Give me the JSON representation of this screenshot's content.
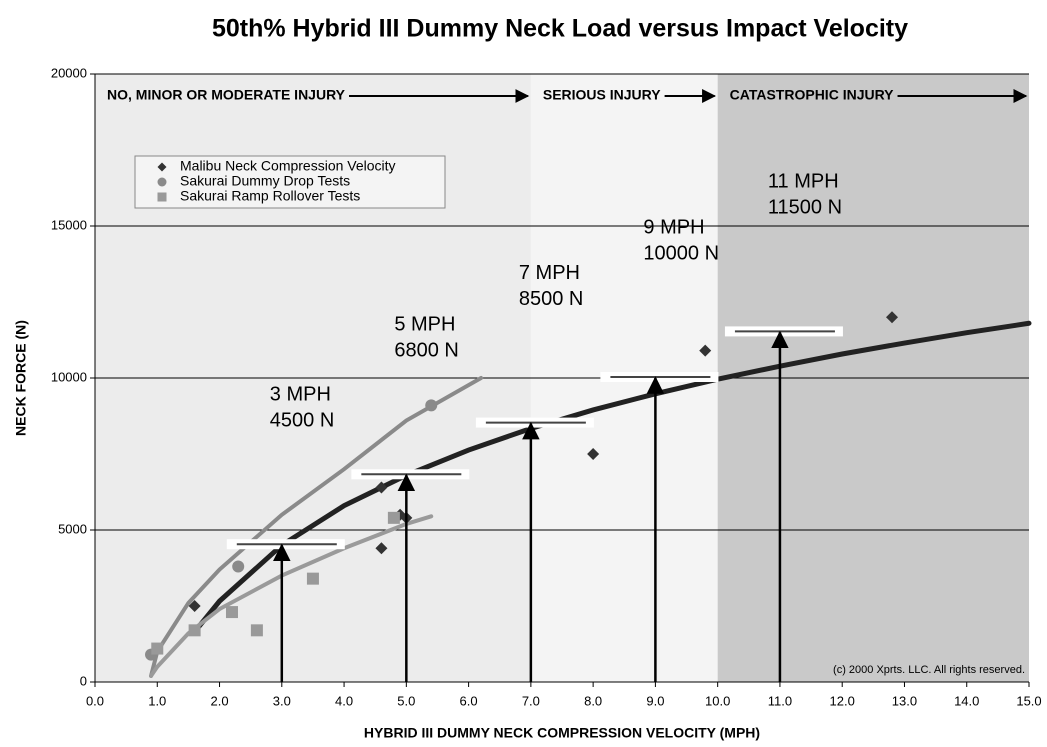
{
  "chart_data": {
    "type": "scatter",
    "title": "50th% Hybrid III Dummy Neck Load versus Impact Velocity",
    "x_label": "HYBRID III DUMMY NECK COMPRESSION VELOCITY (MPH)",
    "y_label": "NECK FORCE (N)",
    "xlim": [
      0,
      15
    ],
    "ylim": [
      0,
      20000
    ],
    "xticks": [
      {
        "value": 0,
        "label": "0.0"
      },
      {
        "value": 1,
        "label": "1.0"
      },
      {
        "value": 2,
        "label": "2.0"
      },
      {
        "value": 3,
        "label": "3.0"
      },
      {
        "value": 4,
        "label": "4.0"
      },
      {
        "value": 5,
        "label": "5.0"
      },
      {
        "value": 6,
        "label": "6.0"
      },
      {
        "value": 7,
        "label": "7.0"
      },
      {
        "value": 8,
        "label": "8.0"
      },
      {
        "value": 9,
        "label": "9.0"
      },
      {
        "value": 10,
        "label": "10.0"
      },
      {
        "value": 11,
        "label": "11.0"
      },
      {
        "value": 12,
        "label": "12.0"
      },
      {
        "value": 13,
        "label": "13.0"
      },
      {
        "value": 14,
        "label": "14.0"
      },
      {
        "value": 15,
        "label": "15.0"
      }
    ],
    "yticks": [
      0,
      5000,
      10000,
      15000,
      20000
    ],
    "grid": true,
    "regions": [
      {
        "xlim": [
          0,
          7
        ],
        "color": "#ececec",
        "label": "NO, MINOR OR MODERATE INJURY"
      },
      {
        "xlim": [
          7,
          10
        ],
        "color": "#f4f4f4",
        "label": "SERIOUS INJURY"
      },
      {
        "xlim": [
          10,
          15
        ],
        "color": "#c9c9c9",
        "label": "CATASTROPHIC INJURY"
      }
    ],
    "series": [
      {
        "name": "Malibu Neck Compression Velocity",
        "color": "#333333",
        "marker": "diamond",
        "x": [
          1.6,
          4.6,
          4.6,
          4.9,
          5.0,
          8.0,
          9.8,
          12.8
        ],
        "values": [
          2500,
          6400,
          4400,
          5500,
          5400,
          7500,
          10900,
          12000
        ]
      },
      {
        "name": "Sakurai Dummy Drop Tests",
        "color": "#8a8a8a",
        "marker": "circle",
        "x": [
          0.9,
          2.3,
          5.4
        ],
        "values": [
          900,
          3800,
          9100
        ]
      },
      {
        "name": "Sakurai Ramp Rollover Tests",
        "color": "#999999",
        "marker": "square",
        "x": [
          1.0,
          1.6,
          2.2,
          2.6,
          3.5,
          4.8
        ],
        "values": [
          1100,
          1700,
          2300,
          1700,
          3400,
          5400
        ]
      }
    ],
    "fits": [
      {
        "color": "#222222",
        "width": 5,
        "x": [
          1.6,
          2,
          3,
          4,
          5,
          6,
          7,
          8,
          9,
          10,
          11,
          12,
          13,
          14,
          15
        ],
        "values": [
          1650,
          2660,
          4500,
          5800,
          6800,
          7630,
          8340,
          8950,
          9480,
          9960,
          10390,
          10790,
          11150,
          11490,
          11800
        ]
      },
      {
        "color": "#8a8a8a",
        "width": 4,
        "x": [
          0.9,
          1.0,
          1.5,
          2,
          3,
          4,
          5,
          6.2
        ],
        "values": [
          200,
          1000,
          2600,
          3700,
          5500,
          7000,
          8600,
          10000
        ]
      },
      {
        "color": "#9a9a9a",
        "width": 4,
        "x": [
          0.9,
          1.0,
          1.5,
          2,
          3,
          4,
          5,
          5.4
        ],
        "values": [
          200,
          500,
          1600,
          2400,
          3500,
          4400,
          5200,
          5450
        ]
      }
    ],
    "impacts": {
      "x": [
        3,
        5,
        7,
        9,
        11
      ],
      "values": [
        4500,
        6800,
        8500,
        10000,
        11500
      ],
      "speed_labels": [
        "3 MPH",
        "5 MPH",
        "7 MPH",
        "9 MPH",
        "11 MPH"
      ],
      "value_labels": [
        "4500 N",
        "6800 N",
        "8500 N",
        "10000 N",
        "11500 N"
      ]
    },
    "copyright": "(c) 2000 Xprts. LLC. All rights reserved."
  }
}
